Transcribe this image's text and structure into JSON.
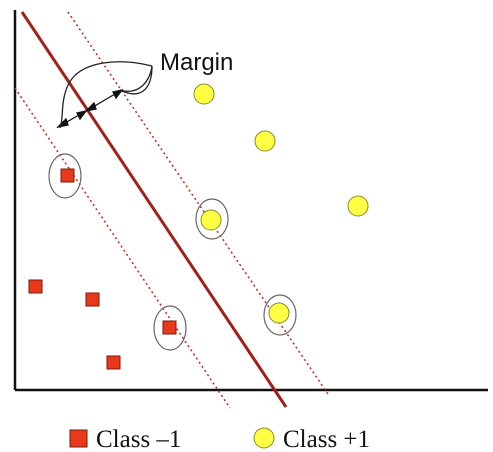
{
  "diagram": {
    "annotation": "Margin",
    "legend": {
      "class_neg": "Class –1",
      "class_pos": "Class +1"
    },
    "colors": {
      "class_neg": "#e8391d",
      "class_neg_stroke": "#7a1a0a",
      "class_pos": "#ffff44",
      "class_pos_stroke": "#8a8a2a",
      "hyperplane": "#a31f1a",
      "margin_line": "#d0241a",
      "support_ring": "#666666",
      "axes": "#111111"
    }
  }
}
